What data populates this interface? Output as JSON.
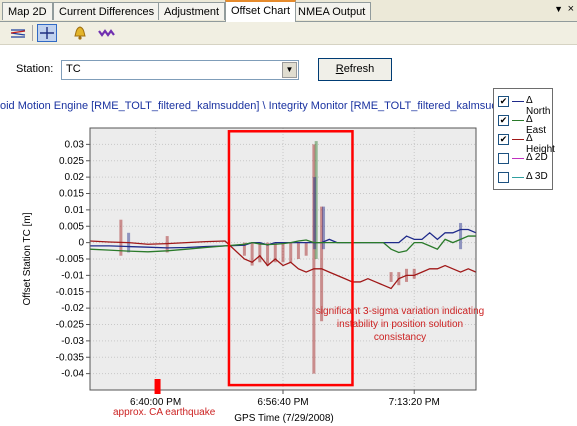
{
  "tabs": [
    {
      "label": "Map 2D",
      "active": false
    },
    {
      "label": "Current Differences",
      "active": false
    },
    {
      "label": "Adjustment",
      "active": false
    },
    {
      "label": "Offset Chart",
      "active": true
    },
    {
      "label": "NMEA Output",
      "active": false
    }
  ],
  "tab_menu_glyph": "▼",
  "tab_close_glyph": "×",
  "toolbar": [
    "lines-chart-icon",
    "crosshair-icon",
    "bell-icon",
    "wave-icon"
  ],
  "station": {
    "label": "Station:",
    "value": "TC"
  },
  "refresh": {
    "label_underlined": "R",
    "label_rest": "efresh"
  },
  "engine_path": "oid Motion Engine [RME_TOLT_filtered_kalmsudden] \\ Integrity Monitor [RME_TOLT_filtered_kalmsudden]",
  "colors": {
    "north": "#1f2a8a",
    "east": "#2a7a2a",
    "height": "#a01818",
    "d2": "#c030c0",
    "d3": "#30a0a0",
    "highlight": "#ff0000",
    "annotation": "#cc2222"
  },
  "chart_data": {
    "type": "line",
    "title": "",
    "xlabel": "GPS Time (7/29/2008)",
    "ylabel": "Offset Station TC [m]",
    "ylim": [
      -0.045,
      0.035
    ],
    "yticks": [
      0.03,
      0.025,
      0.02,
      0.015,
      0.01,
      0.005,
      0,
      -0.005,
      -0.01,
      -0.015,
      -0.02,
      -0.025,
      -0.03,
      -0.035,
      -0.04
    ],
    "ytick_labels": [
      "0.03",
      "0.025",
      "0.02",
      "0.015",
      "0.01",
      "0.005",
      "0",
      "-0.005",
      "-0.01",
      "-0.015",
      "-0.02",
      "-0.025",
      "-0.03",
      "-0.035",
      "-0.04"
    ],
    "xlim": [
      0,
      100
    ],
    "xticks": [
      {
        "t": 17,
        "label": "6:40:00 PM"
      },
      {
        "t": 50,
        "label": "6:56:40 PM"
      },
      {
        "t": 84,
        "label": "7:13:20 PM"
      }
    ],
    "series": [
      {
        "name": "Δ North",
        "checked": true,
        "color_key": "north",
        "x": [
          0,
          5,
          10,
          15,
          20,
          25,
          30,
          35,
          40,
          42,
          44,
          46,
          48,
          50,
          52,
          54,
          56,
          58,
          60,
          62,
          64,
          66,
          68,
          70,
          72,
          74,
          76,
          78,
          80,
          82,
          84,
          86,
          88,
          90,
          92,
          94,
          96,
          98,
          100
        ],
        "values": [
          -0.001,
          -0.001,
          -0.0012,
          -0.0014,
          -0.0016,
          -0.0015,
          -0.0012,
          -0.001,
          -0.0008,
          0.0,
          0.0,
          -0.0007,
          0.0,
          0.0,
          0.0,
          0.0,
          0.0,
          0.0,
          0.0,
          0.001,
          0.0,
          0.0,
          0.0,
          0.0,
          0.0,
          0.0,
          0.0,
          0.0,
          0.0,
          0.002,
          0.001,
          0.001,
          0.003,
          0.001,
          0.003,
          0.003,
          0.004,
          0.004,
          0.003
        ]
      },
      {
        "name": "Δ East",
        "checked": true,
        "color_key": "east",
        "x": [
          0,
          5,
          10,
          15,
          20,
          25,
          30,
          35,
          40,
          42,
          44,
          46,
          48,
          50,
          52,
          54,
          56,
          58,
          60,
          62,
          64,
          66,
          68,
          70,
          72,
          74,
          76,
          78,
          80,
          82,
          84,
          86,
          88,
          90,
          92,
          94,
          96,
          98,
          100
        ],
        "values": [
          -0.002,
          -0.0023,
          -0.0026,
          -0.0028,
          -0.0025,
          -0.002,
          -0.0015,
          -0.001,
          -0.0005,
          0.0,
          -0.0004,
          -0.0006,
          -0.0005,
          -0.0003,
          0.0,
          0.0005,
          0.0008,
          0.0,
          0.0,
          0.0,
          0.0,
          0.0,
          0.0,
          0.0,
          0.0,
          0.0,
          0.0,
          -0.002,
          -0.003,
          -0.0025,
          0.0,
          0.0,
          -0.001,
          -0.002,
          0.001,
          0.0,
          0.001,
          0.002,
          0.002
        ]
      },
      {
        "name": "Δ Height",
        "checked": true,
        "color_key": "height",
        "x": [
          0,
          5,
          10,
          15,
          20,
          25,
          30,
          35,
          40,
          42,
          44,
          46,
          48,
          50,
          52,
          54,
          56,
          58,
          60,
          62,
          64,
          66,
          68,
          70,
          72,
          74,
          76,
          78,
          80,
          82,
          84,
          86,
          88,
          90,
          92,
          94,
          96,
          98,
          100
        ],
        "values": [
          0.0005,
          0.0002,
          0.0,
          -0.0005,
          -0.0003,
          0.0,
          0.0003,
          0.0005,
          -0.005,
          -0.006,
          -0.004,
          -0.007,
          -0.005,
          -0.007,
          -0.006,
          -0.008,
          -0.009,
          -0.008,
          -0.008,
          -0.009,
          -0.01,
          -0.011,
          -0.012,
          -0.012,
          -0.011,
          -0.012,
          -0.013,
          -0.014,
          -0.011,
          -0.01,
          -0.01,
          -0.009,
          -0.008,
          -0.008,
          -0.007,
          -0.008,
          -0.009,
          -0.008,
          -0.009
        ]
      },
      {
        "name": "Δ 2D",
        "checked": false,
        "color_key": "d2",
        "x": [],
        "values": []
      },
      {
        "name": "Δ 3D",
        "checked": false,
        "color_key": "d3",
        "x": [],
        "values": []
      }
    ],
    "sigma_bars": [
      {
        "t": 8,
        "lo": -0.004,
        "hi": 0.007,
        "color_key": "height"
      },
      {
        "t": 10,
        "lo": -0.003,
        "hi": 0.003,
        "color_key": "north"
      },
      {
        "t": 20,
        "lo": -0.003,
        "hi": 0.002,
        "color_key": "height"
      },
      {
        "t": 40,
        "lo": -0.004,
        "hi": 0.0,
        "color_key": "height"
      },
      {
        "t": 42,
        "lo": -0.007,
        "hi": 0.0,
        "color_key": "height"
      },
      {
        "t": 44,
        "lo": -0.006,
        "hi": 0.0,
        "color_key": "height"
      },
      {
        "t": 46,
        "lo": -0.007,
        "hi": 0.0,
        "color_key": "height"
      },
      {
        "t": 48,
        "lo": -0.006,
        "hi": 0.0,
        "color_key": "height"
      },
      {
        "t": 50,
        "lo": -0.006,
        "hi": 0.0,
        "color_key": "height"
      },
      {
        "t": 52,
        "lo": -0.006,
        "hi": 0.0,
        "color_key": "height"
      },
      {
        "t": 54,
        "lo": -0.005,
        "hi": 0.0,
        "color_key": "height"
      },
      {
        "t": 56,
        "lo": -0.004,
        "hi": 0.0,
        "color_key": "height"
      },
      {
        "t": 58,
        "lo": -0.04,
        "hi": 0.03,
        "color_key": "height"
      },
      {
        "t": 58.6,
        "lo": -0.005,
        "hi": 0.031,
        "color_key": "east"
      },
      {
        "t": 58.2,
        "lo": -0.002,
        "hi": 0.02,
        "color_key": "north"
      },
      {
        "t": 60,
        "lo": -0.024,
        "hi": 0.011,
        "color_key": "height"
      },
      {
        "t": 60.5,
        "lo": -0.002,
        "hi": 0.011,
        "color_key": "north"
      },
      {
        "t": 78,
        "lo": -0.012,
        "hi": -0.009,
        "color_key": "height"
      },
      {
        "t": 80,
        "lo": -0.013,
        "hi": -0.009,
        "color_key": "height"
      },
      {
        "t": 82,
        "lo": -0.012,
        "hi": -0.008,
        "color_key": "height"
      },
      {
        "t": 84,
        "lo": -0.011,
        "hi": -0.008,
        "color_key": "height"
      },
      {
        "t": 96,
        "lo": -0.002,
        "hi": 0.006,
        "color_key": "north"
      }
    ],
    "highlight_box": {
      "t_from": 36,
      "t_to": 68,
      "v_top": 0.034,
      "v_bottom": -0.0435
    },
    "earthquake_marker_t": 17.5,
    "annotations": {
      "earthquake": "approx. CA earthquake",
      "note_lines": [
        "significant 3-sigma variation indicating",
        "instability in position solution",
        "consistancy"
      ]
    }
  }
}
